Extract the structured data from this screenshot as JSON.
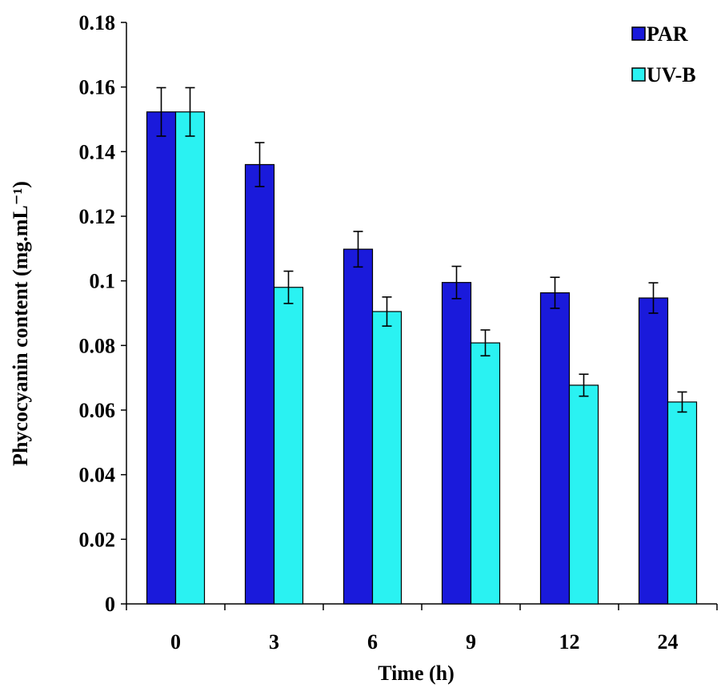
{
  "chart_data": {
    "type": "bar",
    "categories": [
      "0",
      "3",
      "6",
      "9",
      "12",
      "24"
    ],
    "series": [
      {
        "name": "PAR",
        "color": "#1a1adb",
        "values": [
          0.1523,
          0.136,
          0.1098,
          0.0995,
          0.0963,
          0.0947
        ],
        "errors": [
          0.0075,
          0.0068,
          0.0055,
          0.005,
          0.0048,
          0.0047
        ]
      },
      {
        "name": "UV-B",
        "color": "#2af2f2",
        "values": [
          0.1523,
          0.098,
          0.0905,
          0.0808,
          0.0677,
          0.0625
        ],
        "errors": [
          0.0075,
          0.005,
          0.0045,
          0.004,
          0.0034,
          0.0031
        ]
      }
    ],
    "y_ticks": [
      "0",
      "0.02",
      "0.04",
      "0.06",
      "0.08",
      "0.1",
      "0.12",
      "0.14",
      "0.16",
      "0.18"
    ],
    "ylim": [
      0,
      0.18
    ],
    "xlabel": "Time (h)",
    "ylabel": "Phycocyanin content (mg.mL⁻¹)",
    "legend_position": "top-right",
    "grid": false
  }
}
